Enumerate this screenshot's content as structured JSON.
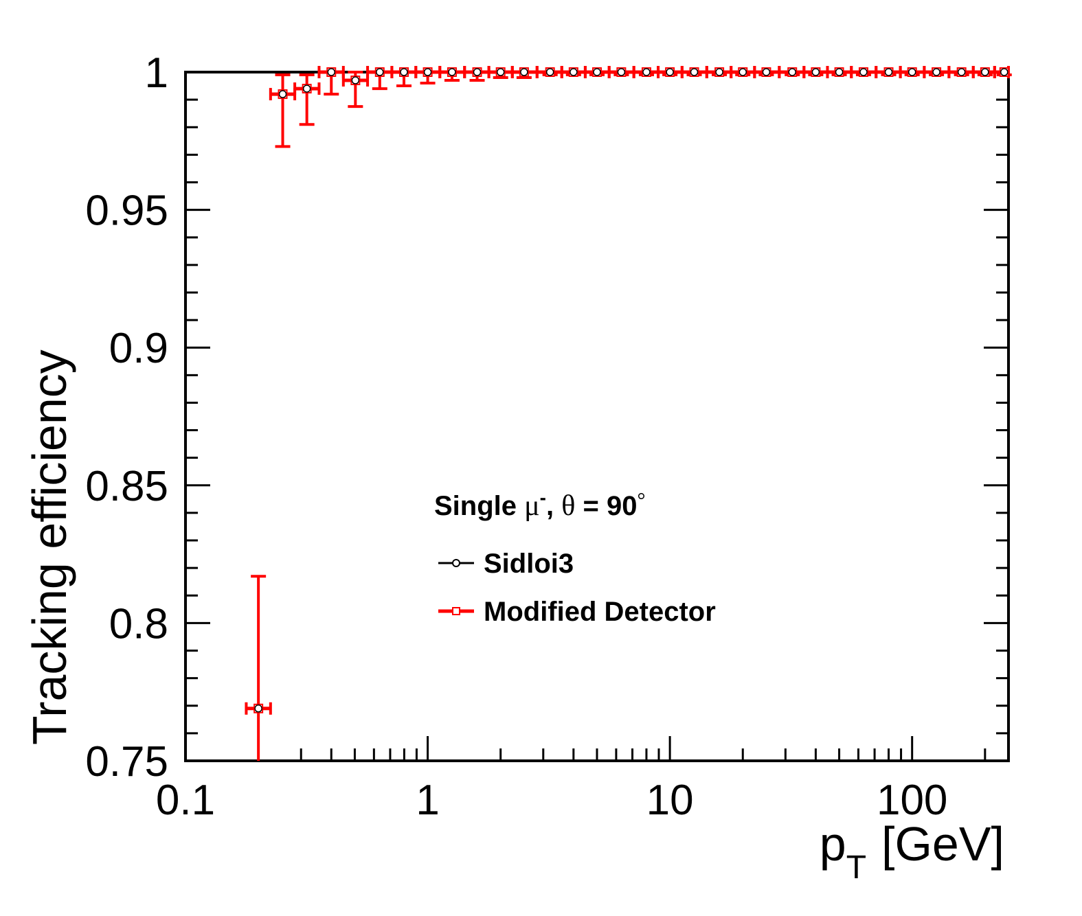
{
  "chart_data": {
    "type": "scatter",
    "xscale": "log",
    "xlim": [
      0.1,
      250
    ],
    "ylim": [
      0.75,
      1.0
    ],
    "xlabel_main": "p",
    "xlabel_sub": "T",
    "xlabel_unit": "[GeV]",
    "ylabel": "Tracking efficiency",
    "x_tick_labels": [
      "0.1",
      "1",
      "10",
      "100"
    ],
    "y_tick_labels": [
      "0.75",
      "0.8",
      "0.85",
      "0.9",
      "0.95",
      "1"
    ],
    "legend": {
      "title_parts": [
        "Single ",
        "μ",
        "-",
        ", ",
        "θ",
        " = 90",
        "°"
      ],
      "entries": [
        "Sidloi3",
        "Modified Detector"
      ]
    },
    "series": [
      {
        "name": "Sidloi3",
        "color": "#000000",
        "marker": "open-circle",
        "x": [
          0.2,
          0.252,
          0.317,
          0.4,
          0.503,
          0.634,
          0.798,
          1.0,
          1.26,
          1.6,
          2.0,
          2.5,
          3.2,
          4.0,
          5.0,
          6.3,
          8.0,
          10.0,
          12.6,
          16.0,
          20.0,
          25.0,
          32.0,
          40.0,
          50.0,
          63.0,
          80.0,
          100.0,
          126.0,
          160.0,
          200.0,
          240.0
        ],
        "y": [
          0.769,
          0.992,
          0.994,
          1.0,
          0.997,
          1.0,
          1.0,
          1.0,
          1.0,
          1.0,
          1.0,
          1.0,
          1.0,
          1.0,
          1.0,
          1.0,
          1.0,
          1.0,
          1.0,
          1.0,
          1.0,
          1.0,
          1.0,
          1.0,
          1.0,
          1.0,
          1.0,
          1.0,
          1.0,
          1.0,
          1.0,
          1.0
        ]
      },
      {
        "name": "Modified Detector",
        "color": "#ff0000",
        "marker": "open-square",
        "x": [
          0.2,
          0.252,
          0.317,
          0.4,
          0.503,
          0.634,
          0.798,
          1.0,
          1.26,
          1.6,
          2.0,
          2.5,
          3.2,
          4.0,
          5.0,
          6.3,
          8.0,
          10.0,
          12.6,
          16.0,
          20.0,
          25.0,
          32.0,
          40.0,
          50.0,
          63.0,
          80.0,
          100.0,
          126.0,
          160.0,
          200.0,
          240.0
        ],
        "y": [
          0.769,
          0.992,
          0.994,
          1.0,
          0.997,
          1.0,
          1.0,
          1.0,
          1.0,
          1.0,
          1.0,
          1.0,
          1.0,
          1.0,
          1.0,
          1.0,
          1.0,
          1.0,
          1.0,
          1.0,
          1.0,
          1.0,
          1.0,
          1.0,
          1.0,
          1.0,
          1.0,
          1.0,
          1.0,
          1.0,
          1.0,
          1.0
        ],
        "y_err_low": [
          0.025,
          0.019,
          0.013,
          0.008,
          0.0095,
          0.006,
          0.005,
          0.004,
          0.003,
          0.003,
          0.002,
          0.002,
          0.001,
          0.001,
          0.001,
          0.001,
          0.001,
          0.001,
          0.001,
          0.001,
          0.001,
          0.001,
          0.001,
          0.001,
          0.001,
          0.001,
          0.001,
          0.001,
          0.001,
          0.001,
          0.001,
          0.001
        ],
        "y_err_high": [
          0.048,
          0.007,
          0.005,
          0.0,
          0.003,
          0.0,
          0.0,
          0.0,
          0.0,
          0.0,
          0.0,
          0.0,
          0.0,
          0.0,
          0.0,
          0.0,
          0.0,
          0.0,
          0.0,
          0.0,
          0.0,
          0.0,
          0.0,
          0.0,
          0.0,
          0.0,
          0.0,
          0.0,
          0.0,
          0.0,
          0.0,
          0.0
        ]
      }
    ],
    "grid": false,
    "legend_position": "center-right"
  }
}
